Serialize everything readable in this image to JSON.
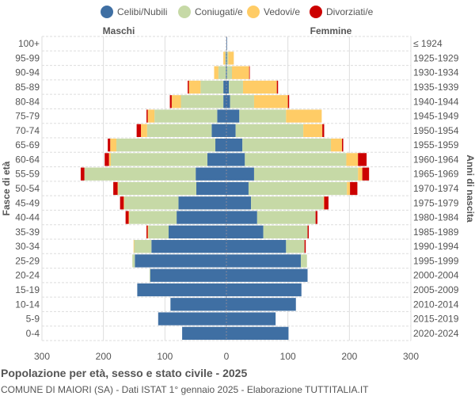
{
  "chart_data": {
    "type": "bar",
    "title": "Popolazione per età, sesso e stato civile - 2025",
    "subtitle": "COMUNE DI MAIORI (SA) - Dati ISTAT 1° gennaio 2025 - Elaborazione TUTTITALIA.IT",
    "left_header": "Maschi",
    "right_header": "Femmine",
    "ylabel_left": "Fasce di età",
    "ylabel_right": "Anni di nascita",
    "xlim": [
      -300,
      300
    ],
    "xticks": [
      "300",
      "200",
      "100",
      "0",
      "100",
      "200",
      "300"
    ],
    "grid": true,
    "legend": "top",
    "age_groups": [
      "100+",
      "95-99",
      "90-94",
      "85-89",
      "80-84",
      "75-79",
      "70-74",
      "65-69",
      "60-64",
      "55-59",
      "50-54",
      "45-49",
      "40-44",
      "35-39",
      "30-34",
      "25-29",
      "20-24",
      "15-19",
      "10-14",
      "5-9",
      "0-4"
    ],
    "birth_years": [
      "≤ 1924",
      "1925-1929",
      "1930-1934",
      "1935-1939",
      "1940-1944",
      "1945-1949",
      "1950-1954",
      "1955-1959",
      "1960-1964",
      "1965-1969",
      "1970-1974",
      "1975-1979",
      "1980-1984",
      "1985-1989",
      "1990-1994",
      "1995-1999",
      "2000-2004",
      "2005-2009",
      "2010-2014",
      "2015-2019",
      "2020-2024"
    ],
    "series": [
      {
        "name": "Celibi/Nubili",
        "color": "#3f6fa3",
        "male": [
          0,
          1,
          1,
          5,
          5,
          15,
          24,
          18,
          31,
          50,
          49,
          78,
          81,
          94,
          122,
          149,
          124,
          145,
          91,
          111,
          72
        ],
        "female": [
          1,
          1,
          1,
          4,
          6,
          21,
          15,
          26,
          30,
          45,
          36,
          40,
          50,
          60,
          97,
          121,
          132,
          122,
          113,
          80,
          101
        ]
      },
      {
        "name": "Coniugati/e",
        "color": "#c6d9a6",
        "male": [
          0,
          1,
          12,
          37,
          69,
          102,
          105,
          161,
          157,
          181,
          127,
          88,
          77,
          33,
          28,
          4,
          1,
          0,
          0,
          0,
          0
        ],
        "female": [
          0,
          2,
          8,
          23,
          39,
          76,
          110,
          144,
          165,
          169,
          160,
          118,
          95,
          72,
          30,
          10,
          0,
          0,
          0,
          0,
          0
        ]
      },
      {
        "name": "Vedovi/e",
        "color": "#ffcc66",
        "male": [
          0,
          3,
          7,
          19,
          15,
          11,
          10,
          10,
          3,
          0,
          1,
          1,
          1,
          1,
          1,
          0,
          0,
          0,
          0,
          0,
          0
        ],
        "female": [
          0,
          9,
          28,
          55,
          55,
          58,
          31,
          18,
          19,
          7,
          5,
          1,
          0,
          0,
          0,
          0,
          0,
          0,
          0,
          0,
          0
        ]
      },
      {
        "name": "Divorziati/e",
        "color": "#cc0000",
        "male": [
          0,
          0,
          0,
          2,
          3,
          2,
          7,
          4,
          7,
          6,
          7,
          6,
          5,
          2,
          0,
          0,
          0,
          0,
          0,
          0,
          0
        ],
        "female": [
          0,
          0,
          1,
          2,
          2,
          0,
          3,
          2,
          14,
          11,
          12,
          7,
          3,
          2,
          2,
          0,
          0,
          0,
          0,
          0,
          0
        ]
      }
    ]
  }
}
